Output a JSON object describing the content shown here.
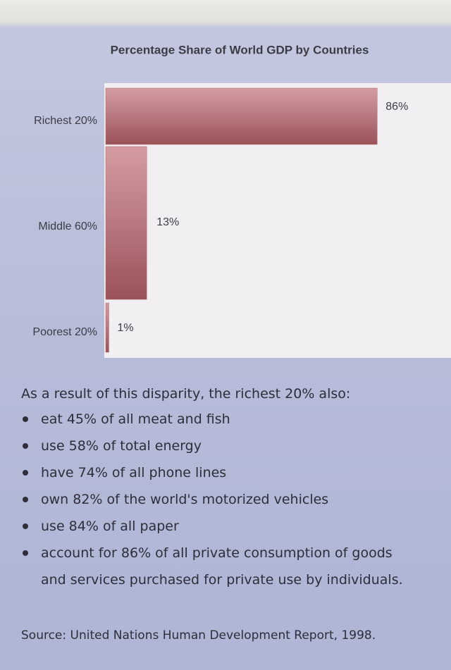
{
  "chart_data": {
    "type": "bar",
    "orientation": "horizontal",
    "title": "Percentage Share of World GDP by Countries",
    "categories": [
      "Richest 20%",
      "Middle 60%",
      "Poorest 20%"
    ],
    "values": [
      86,
      13,
      1
    ],
    "value_labels": [
      "86%",
      "13%",
      "1%"
    ],
    "xlim": [
      0,
      100
    ],
    "color": "#b06a72"
  },
  "notes": {
    "intro": "As a result of this disparity, the richest 20% also:",
    "bullets": [
      "eat 45% of all meat and fish",
      "use 58% of total energy",
      "have 74% of all phone lines",
      "own 82% of the world's motorized vehicles",
      "use 84% of all paper",
      "account for 86% of all private consumption of goods and services purchased for private use by individuals."
    ],
    "source": "Source: United Nations Human Development Report, 1998."
  }
}
